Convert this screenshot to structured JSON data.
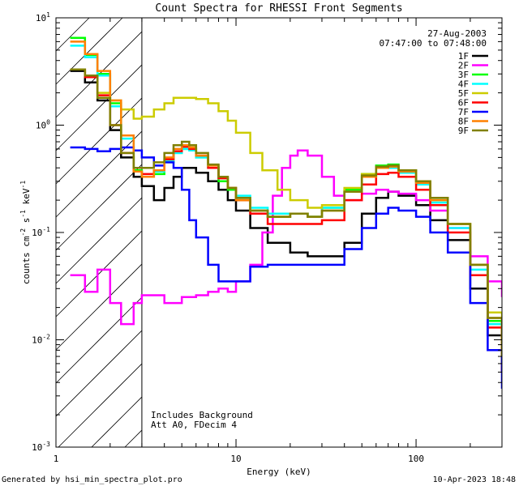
{
  "chart_data": {
    "type": "line",
    "title": "Count Spectra for RHESSI Front Segments",
    "xlabel": "Energy (keV)",
    "ylabel": "counts cm^-2 s^-1 keV^-1",
    "ylabel_parts": {
      "base": "counts cm",
      "exp1": "-2",
      "mid": " s",
      "exp2": "-1",
      "mid2": " keV",
      "exp3": "-1"
    },
    "xscale": "log",
    "yscale": "log",
    "xlim": [
      1,
      300
    ],
    "ylim": [
      0.001,
      10
    ],
    "x_ticks": [
      {
        "value": 1,
        "label": "1"
      },
      {
        "value": 10,
        "label": "10"
      },
      {
        "value": 100,
        "label": "100"
      }
    ],
    "y_ticks": [
      {
        "value": 0.001,
        "base": "10",
        "exp": "-3"
      },
      {
        "value": 0.01,
        "base": "10",
        "exp": "-2"
      },
      {
        "value": 0.1,
        "base": "10",
        "exp": "-1"
      },
      {
        "value": 1,
        "base": "10",
        "exp": "0"
      },
      {
        "value": 10,
        "base": "10",
        "exp": "1"
      }
    ],
    "date": "27-Aug-2003",
    "time_range": "07:47:00 to 07:48:00",
    "excluded_region_max_kev": 3,
    "annotations": [
      "Includes Background",
      "Att A0, FDecim 4"
    ],
    "legend_position": "top-right",
    "series": [
      {
        "name": "1F",
        "color": "#000000",
        "points": [
          [
            1.2,
            3.2
          ],
          [
            1.45,
            2.5
          ],
          [
            1.7,
            1.7
          ],
          [
            2.0,
            0.9
          ],
          [
            2.3,
            0.5
          ],
          [
            2.7,
            0.33
          ],
          [
            3.0,
            0.27
          ],
          [
            3.5,
            0.2
          ],
          [
            4.0,
            0.26
          ],
          [
            4.5,
            0.33
          ],
          [
            5.0,
            0.4
          ],
          [
            5.5,
            0.4
          ],
          [
            6.0,
            0.36
          ],
          [
            7.0,
            0.3
          ],
          [
            8.0,
            0.25
          ],
          [
            9.0,
            0.2
          ],
          [
            10,
            0.16
          ],
          [
            12,
            0.11
          ],
          [
            15,
            0.08
          ],
          [
            20,
            0.065
          ],
          [
            25,
            0.06
          ],
          [
            30,
            0.06
          ],
          [
            40,
            0.08
          ],
          [
            50,
            0.15
          ],
          [
            60,
            0.21
          ],
          [
            70,
            0.24
          ],
          [
            80,
            0.22
          ],
          [
            100,
            0.18
          ],
          [
            120,
            0.13
          ],
          [
            150,
            0.085
          ],
          [
            200,
            0.03
          ],
          [
            250,
            0.011
          ],
          [
            300,
            0.005
          ]
        ]
      },
      {
        "name": "2F",
        "color": "#ff00ff",
        "points": [
          [
            1.2,
            0.04
          ],
          [
            1.45,
            0.028
          ],
          [
            1.7,
            0.045
          ],
          [
            2.0,
            0.022
          ],
          [
            2.3,
            0.014
          ],
          [
            2.7,
            0.022
          ],
          [
            3.0,
            0.026
          ],
          [
            4.0,
            0.022
          ],
          [
            5.0,
            0.025
          ],
          [
            6.0,
            0.026
          ],
          [
            7.0,
            0.028
          ],
          [
            8.0,
            0.03
          ],
          [
            9.0,
            0.028
          ],
          [
            10,
            0.035
          ],
          [
            12,
            0.05
          ],
          [
            14,
            0.1
          ],
          [
            16,
            0.22
          ],
          [
            18,
            0.4
          ],
          [
            20,
            0.52
          ],
          [
            22,
            0.58
          ],
          [
            25,
            0.52
          ],
          [
            30,
            0.33
          ],
          [
            35,
            0.22
          ],
          [
            40,
            0.2
          ],
          [
            50,
            0.23
          ],
          [
            60,
            0.25
          ],
          [
            70,
            0.24
          ],
          [
            80,
            0.23
          ],
          [
            100,
            0.2
          ],
          [
            120,
            0.16
          ],
          [
            150,
            0.11
          ],
          [
            200,
            0.06
          ],
          [
            250,
            0.035
          ],
          [
            300,
            0.025
          ]
        ]
      },
      {
        "name": "3F",
        "color": "#00ff00",
        "points": [
          [
            1.2,
            6.5
          ],
          [
            1.45,
            4.5
          ],
          [
            1.7,
            3.0
          ],
          [
            2.0,
            1.6
          ],
          [
            2.3,
            0.8
          ],
          [
            2.7,
            0.38
          ],
          [
            3.0,
            0.33
          ],
          [
            3.5,
            0.35
          ],
          [
            4.0,
            0.45
          ],
          [
            4.5,
            0.55
          ],
          [
            5.0,
            0.6
          ],
          [
            5.5,
            0.6
          ],
          [
            6.0,
            0.5
          ],
          [
            7.0,
            0.4
          ],
          [
            8.0,
            0.3
          ],
          [
            9.0,
            0.25
          ],
          [
            10,
            0.2
          ],
          [
            12,
            0.16
          ],
          [
            15,
            0.14
          ],
          [
            20,
            0.15
          ],
          [
            25,
            0.14
          ],
          [
            30,
            0.17
          ],
          [
            40,
            0.25
          ],
          [
            50,
            0.35
          ],
          [
            60,
            0.42
          ],
          [
            70,
            0.43
          ],
          [
            80,
            0.38
          ],
          [
            100,
            0.3
          ],
          [
            120,
            0.2
          ],
          [
            150,
            0.12
          ],
          [
            200,
            0.05
          ],
          [
            250,
            0.015
          ],
          [
            300,
            0.006
          ]
        ]
      },
      {
        "name": "4F",
        "color": "#00ffff",
        "points": [
          [
            1.2,
            5.5
          ],
          [
            1.45,
            4.3
          ],
          [
            1.7,
            2.9
          ],
          [
            2.0,
            1.5
          ],
          [
            2.3,
            0.75
          ],
          [
            2.7,
            0.37
          ],
          [
            3.0,
            0.33
          ],
          [
            3.5,
            0.37
          ],
          [
            4.0,
            0.46
          ],
          [
            4.5,
            0.55
          ],
          [
            5.0,
            0.6
          ],
          [
            5.5,
            0.58
          ],
          [
            6.0,
            0.5
          ],
          [
            7.0,
            0.4
          ],
          [
            8.0,
            0.32
          ],
          [
            9.0,
            0.26
          ],
          [
            10,
            0.22
          ],
          [
            12,
            0.17
          ],
          [
            15,
            0.15
          ],
          [
            20,
            0.15
          ],
          [
            25,
            0.14
          ],
          [
            30,
            0.17
          ],
          [
            40,
            0.24
          ],
          [
            50,
            0.33
          ],
          [
            60,
            0.4
          ],
          [
            70,
            0.4
          ],
          [
            80,
            0.36
          ],
          [
            100,
            0.28
          ],
          [
            120,
            0.19
          ],
          [
            150,
            0.11
          ],
          [
            200,
            0.045
          ],
          [
            250,
            0.014
          ],
          [
            300,
            0.006
          ]
        ]
      },
      {
        "name": "5F",
        "color": "#cccc00",
        "points": [
          [
            1.2,
            3.3
          ],
          [
            1.45,
            2.9
          ],
          [
            1.7,
            2.0
          ],
          [
            2.0,
            1.7
          ],
          [
            2.3,
            1.4
          ],
          [
            2.7,
            1.15
          ],
          [
            3.0,
            1.2
          ],
          [
            3.5,
            1.4
          ],
          [
            4.0,
            1.6
          ],
          [
            4.5,
            1.8
          ],
          [
            5.0,
            1.8
          ],
          [
            6.0,
            1.75
          ],
          [
            7.0,
            1.6
          ],
          [
            8.0,
            1.35
          ],
          [
            9.0,
            1.1
          ],
          [
            10,
            0.85
          ],
          [
            12,
            0.55
          ],
          [
            14,
            0.38
          ],
          [
            17,
            0.25
          ],
          [
            20,
            0.2
          ],
          [
            25,
            0.17
          ],
          [
            30,
            0.18
          ],
          [
            40,
            0.26
          ],
          [
            50,
            0.35
          ],
          [
            60,
            0.4
          ],
          [
            70,
            0.41
          ],
          [
            80,
            0.37
          ],
          [
            100,
            0.3
          ],
          [
            120,
            0.21
          ],
          [
            150,
            0.12
          ],
          [
            200,
            0.05
          ],
          [
            250,
            0.018
          ],
          [
            300,
            0.008
          ]
        ]
      },
      {
        "name": "6F",
        "color": "#ff0000",
        "points": [
          [
            1.2,
            3.3
          ],
          [
            1.45,
            2.8
          ],
          [
            1.7,
            1.9
          ],
          [
            2.0,
            1.0
          ],
          [
            2.3,
            0.55
          ],
          [
            2.7,
            0.37
          ],
          [
            3.0,
            0.35
          ],
          [
            3.5,
            0.38
          ],
          [
            4.0,
            0.48
          ],
          [
            4.5,
            0.57
          ],
          [
            5.0,
            0.63
          ],
          [
            5.5,
            0.6
          ],
          [
            6.0,
            0.52
          ],
          [
            7.0,
            0.4
          ],
          [
            8.0,
            0.32
          ],
          [
            9.0,
            0.26
          ],
          [
            10,
            0.2
          ],
          [
            12,
            0.15
          ],
          [
            15,
            0.12
          ],
          [
            20,
            0.12
          ],
          [
            25,
            0.12
          ],
          [
            30,
            0.13
          ],
          [
            40,
            0.2
          ],
          [
            50,
            0.28
          ],
          [
            60,
            0.35
          ],
          [
            70,
            0.36
          ],
          [
            80,
            0.33
          ],
          [
            100,
            0.25
          ],
          [
            120,
            0.18
          ],
          [
            150,
            0.1
          ],
          [
            200,
            0.04
          ],
          [
            250,
            0.013
          ],
          [
            300,
            0.005
          ]
        ]
      },
      {
        "name": "7F",
        "color": "#0000ff",
        "points": [
          [
            1.2,
            0.62
          ],
          [
            1.45,
            0.6
          ],
          [
            1.7,
            0.57
          ],
          [
            2.0,
            0.6
          ],
          [
            2.3,
            0.62
          ],
          [
            2.7,
            0.58
          ],
          [
            3.0,
            0.5
          ],
          [
            3.5,
            0.42
          ],
          [
            4.0,
            0.45
          ],
          [
            4.5,
            0.4
          ],
          [
            5.0,
            0.25
          ],
          [
            5.5,
            0.13
          ],
          [
            6.0,
            0.09
          ],
          [
            7.0,
            0.05
          ],
          [
            8.0,
            0.035
          ],
          [
            9.0,
            0.035
          ],
          [
            10,
            0.035
          ],
          [
            12,
            0.048
          ],
          [
            15,
            0.05
          ],
          [
            20,
            0.05
          ],
          [
            25,
            0.05
          ],
          [
            30,
            0.05
          ],
          [
            40,
            0.07
          ],
          [
            50,
            0.11
          ],
          [
            60,
            0.15
          ],
          [
            70,
            0.17
          ],
          [
            80,
            0.16
          ],
          [
            100,
            0.14
          ],
          [
            120,
            0.1
          ],
          [
            150,
            0.065
          ],
          [
            200,
            0.022
          ],
          [
            250,
            0.008
          ],
          [
            300,
            0.0035
          ]
        ]
      },
      {
        "name": "8F",
        "color": "#ff8000",
        "points": [
          [
            1.2,
            6.0
          ],
          [
            1.45,
            4.6
          ],
          [
            1.7,
            3.2
          ],
          [
            2.0,
            1.7
          ],
          [
            2.3,
            0.8
          ],
          [
            2.7,
            0.37
          ],
          [
            3.0,
            0.33
          ],
          [
            3.5,
            0.38
          ],
          [
            4.0,
            0.5
          ],
          [
            4.5,
            0.6
          ],
          [
            5.0,
            0.65
          ],
          [
            5.5,
            0.62
          ],
          [
            6.0,
            0.52
          ],
          [
            7.0,
            0.42
          ],
          [
            8.0,
            0.33
          ],
          [
            9.0,
            0.26
          ],
          [
            10,
            0.2
          ],
          [
            12,
            0.16
          ],
          [
            15,
            0.14
          ],
          [
            20,
            0.15
          ],
          [
            25,
            0.14
          ],
          [
            30,
            0.16
          ],
          [
            40,
            0.24
          ],
          [
            50,
            0.33
          ],
          [
            60,
            0.4
          ],
          [
            70,
            0.41
          ],
          [
            80,
            0.37
          ],
          [
            100,
            0.29
          ],
          [
            120,
            0.2
          ],
          [
            150,
            0.12
          ],
          [
            200,
            0.05
          ],
          [
            250,
            0.016
          ],
          [
            300,
            0.007
          ]
        ]
      },
      {
        "name": "9F",
        "color": "#808000",
        "points": [
          [
            1.2,
            3.3
          ],
          [
            1.45,
            2.9
          ],
          [
            1.7,
            1.8
          ],
          [
            2.0,
            1.0
          ],
          [
            2.3,
            0.55
          ],
          [
            2.7,
            0.4
          ],
          [
            3.0,
            0.4
          ],
          [
            3.5,
            0.45
          ],
          [
            4.0,
            0.55
          ],
          [
            4.5,
            0.65
          ],
          [
            5.0,
            0.7
          ],
          [
            5.5,
            0.65
          ],
          [
            6.0,
            0.55
          ],
          [
            7.0,
            0.43
          ],
          [
            8.0,
            0.33
          ],
          [
            9.0,
            0.26
          ],
          [
            10,
            0.21
          ],
          [
            12,
            0.16
          ],
          [
            15,
            0.14
          ],
          [
            20,
            0.15
          ],
          [
            25,
            0.14
          ],
          [
            30,
            0.16
          ],
          [
            40,
            0.24
          ],
          [
            50,
            0.34
          ],
          [
            60,
            0.41
          ],
          [
            70,
            0.42
          ],
          [
            80,
            0.38
          ],
          [
            100,
            0.3
          ],
          [
            120,
            0.21
          ],
          [
            150,
            0.12
          ],
          [
            200,
            0.05
          ],
          [
            250,
            0.016
          ],
          [
            300,
            0.007
          ]
        ]
      }
    ]
  },
  "footer": {
    "generated_by": "Generated by hsi_min_spectra_plot.pro",
    "timestamp": "10-Apr-2023 18:48"
  }
}
